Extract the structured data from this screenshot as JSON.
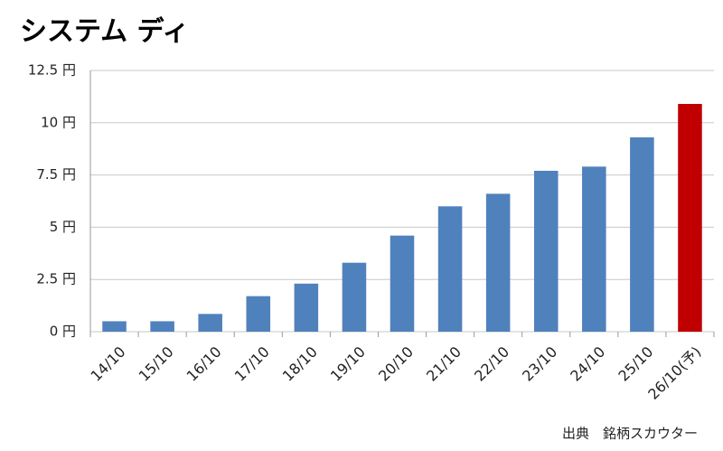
{
  "chart_data": {
    "type": "bar",
    "title": "システム ディ",
    "source": "出典　銘柄スカウター",
    "categories": [
      "14/10",
      "15/10",
      "16/10",
      "17/10",
      "18/10",
      "19/10",
      "20/10",
      "21/10",
      "22/10",
      "23/10",
      "24/10",
      "25/10",
      "26/10(予)"
    ],
    "values": [
      0.5,
      0.5,
      0.85,
      1.7,
      2.3,
      3.3,
      4.6,
      6.0,
      6.6,
      7.7,
      7.9,
      9.3,
      10.9
    ],
    "colors": [
      "#4f81bd",
      "#4f81bd",
      "#4f81bd",
      "#4f81bd",
      "#4f81bd",
      "#4f81bd",
      "#4f81bd",
      "#4f81bd",
      "#4f81bd",
      "#4f81bd",
      "#4f81bd",
      "#4f81bd",
      "#c00000"
    ],
    "ylim": [
      0,
      12.5
    ],
    "yticks": [
      {
        "value": 0,
        "label": "0 円"
      },
      {
        "value": 2.5,
        "label": "2.5 円"
      },
      {
        "value": 5,
        "label": "5 円"
      },
      {
        "value": 7.5,
        "label": "7.5 円"
      },
      {
        "value": 10,
        "label": "10 円"
      },
      {
        "value": 12.5,
        "label": "12.5 円"
      }
    ],
    "grid": true
  }
}
